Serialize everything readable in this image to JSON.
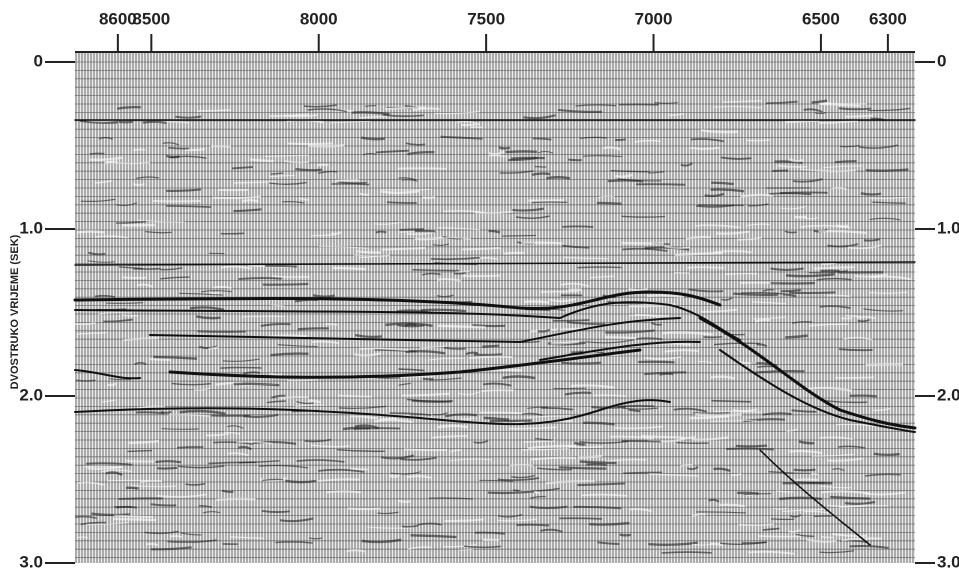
{
  "chart_data": {
    "type": "seismic",
    "y_label": "DVOSTRUKO VRIJEME (SEK)",
    "xlim": [
      8728,
      6219
    ],
    "xticks": [
      8600,
      8500,
      8000,
      7500,
      7000,
      6500,
      6300
    ],
    "ylim": [
      0,
      3
    ],
    "yticks": [
      0,
      {
        "value": 1,
        "label": "1.0"
      },
      {
        "value": 2,
        "label": "2.0"
      },
      {
        "value": 3,
        "label": "3.0"
      }
    ]
  }
}
